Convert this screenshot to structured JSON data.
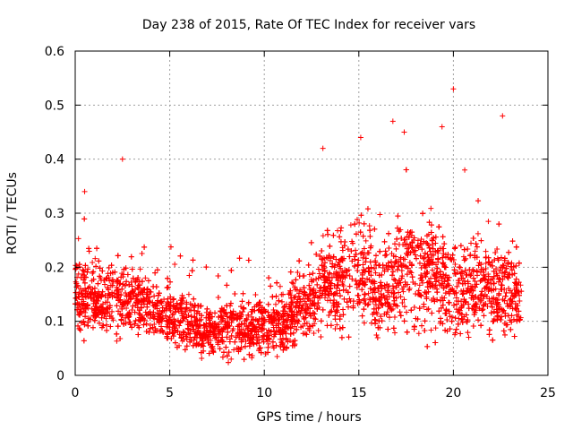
{
  "chart_data": {
    "type": "scatter",
    "title": "Day 238 of 2015, Rate Of TEC Index for receiver vars",
    "xlabel": "GPS time / hours",
    "ylabel": "ROTI / TECUs",
    "xlim": [
      0,
      25
    ],
    "ylim": [
      0,
      0.6
    ],
    "xticks": [
      0,
      5,
      10,
      15,
      20,
      25
    ],
    "yticks": [
      0,
      0.1,
      0.2,
      0.3,
      0.4,
      0.5,
      0.6
    ],
    "xtick_labels": [
      "0",
      "5",
      "10",
      "15",
      "20",
      "25"
    ],
    "ytick_labels": [
      "0",
      "0.1",
      "0.2",
      "0.3",
      "0.4",
      "0.5",
      "0.6"
    ],
    "grid": true,
    "marker": "+",
    "color": "#ff0000",
    "series": [
      {
        "name": "ROTI",
        "x_range": [
          0,
          23.6
        ],
        "notable_points": [
          {
            "x": 20.0,
            "y": 0.53
          },
          {
            "x": 22.6,
            "y": 0.48
          },
          {
            "x": 16.8,
            "y": 0.47
          },
          {
            "x": 19.4,
            "y": 0.46
          },
          {
            "x": 13.1,
            "y": 0.42
          },
          {
            "x": 2.5,
            "y": 0.4
          },
          {
            "x": 15.1,
            "y": 0.44
          },
          {
            "x": 17.4,
            "y": 0.45
          },
          {
            "x": 20.6,
            "y": 0.38
          },
          {
            "x": 0.5,
            "y": 0.34
          }
        ],
        "envelope": [
          {
            "x": 0,
            "low": 0.06,
            "high": 0.22
          },
          {
            "x": 1,
            "low": 0.05,
            "high": 0.2
          },
          {
            "x": 2,
            "low": 0.04,
            "high": 0.21
          },
          {
            "x": 3,
            "low": 0.04,
            "high": 0.22
          },
          {
            "x": 4,
            "low": 0.04,
            "high": 0.19
          },
          {
            "x": 5,
            "low": 0.03,
            "high": 0.16
          },
          {
            "x": 6,
            "low": 0.03,
            "high": 0.14
          },
          {
            "x": 7,
            "low": 0.02,
            "high": 0.13
          },
          {
            "x": 8,
            "low": 0.02,
            "high": 0.14
          },
          {
            "x": 9,
            "low": 0.01,
            "high": 0.15
          },
          {
            "x": 10,
            "low": 0.02,
            "high": 0.15
          },
          {
            "x": 11,
            "low": 0.02,
            "high": 0.16
          },
          {
            "x": 12,
            "low": 0.03,
            "high": 0.19
          },
          {
            "x": 13,
            "low": 0.04,
            "high": 0.24
          },
          {
            "x": 14,
            "low": 0.05,
            "high": 0.26
          },
          {
            "x": 15,
            "low": 0.06,
            "high": 0.3
          },
          {
            "x": 16,
            "low": 0.04,
            "high": 0.24
          },
          {
            "x": 17,
            "low": 0.03,
            "high": 0.3
          },
          {
            "x": 18,
            "low": 0.03,
            "high": 0.32
          },
          {
            "x": 19,
            "low": 0.02,
            "high": 0.3
          },
          {
            "x": 20,
            "low": 0.03,
            "high": 0.25
          },
          {
            "x": 21,
            "low": 0.03,
            "high": 0.27
          },
          {
            "x": 22,
            "low": 0.03,
            "high": 0.25
          },
          {
            "x": 23,
            "low": 0.04,
            "high": 0.24
          },
          {
            "x": 23.6,
            "low": 0.06,
            "high": 0.2
          }
        ],
        "point_count": 5200
      }
    ]
  }
}
